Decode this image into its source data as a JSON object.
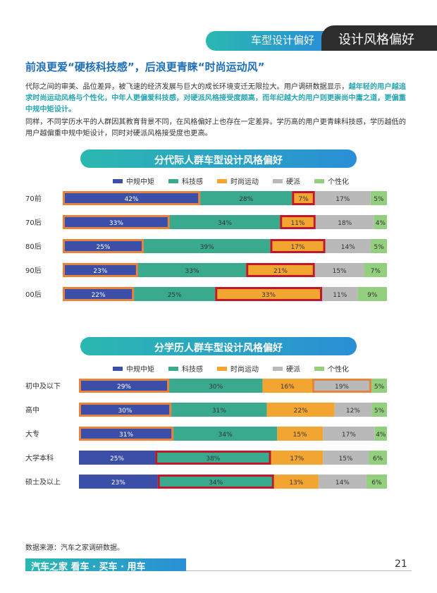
{
  "header": {
    "category": "车型设计偏好",
    "section": "设计风格偏好"
  },
  "headline": "前浪更爱“硬核科技感”，后浪更青睐“时尚运动风”",
  "para1": {
    "a": "代际之间的审美、品位差异，被飞速的经济发展与巨大的成长环境变迁无限拉大。用户调研数据显示，",
    "b": "越年轻的用户越追求时尚运动风格与个性化，中年人更偏爱科技感，对硬派风格接受度颇高，而年纪越大的用户则更崇尚中庸之道，更偏重中规中矩设计。"
  },
  "para2": "同样，不同学历水平的人群因其教育背景不同，在风格偏好上也存在一定差异。学历高的用户更青睐科技感，学历越低的用户越偏重中规中矩设计，同时对硬派风格接受度也更高。",
  "colors": {
    "s1": "#3b4fa8",
    "s2": "#3aaa8e",
    "s3": "#f2a530",
    "s4": "#b9b9b9",
    "s5": "#93cf7e",
    "orange_border": "#e9823c",
    "red_border": "#c0182a"
  },
  "legend": [
    "中规中矩",
    "科技感",
    "时尚运动",
    "硬派",
    "个性化"
  ],
  "chart_data": [
    {
      "type": "bar",
      "orientation": "horizontal-stacked-100",
      "title": "分代际人群车型设计风格偏好",
      "categories": [
        "70前",
        "70后",
        "80后",
        "90后",
        "00后"
      ],
      "series": [
        {
          "name": "中规中矩",
          "values": [
            42,
            33,
            25,
            23,
            22
          ]
        },
        {
          "name": "科技感",
          "values": [
            28,
            34,
            39,
            33,
            25
          ]
        },
        {
          "name": "时尚运动",
          "values": [
            7,
            11,
            17,
            21,
            33
          ]
        },
        {
          "name": "硬派",
          "values": [
            17,
            18,
            14,
            15,
            11
          ]
        },
        {
          "name": "个性化",
          "values": [
            5,
            4,
            5,
            7,
            9
          ]
        }
      ],
      "highlights": {
        "中规中矩": "orange",
        "时尚运动": "red"
      }
    },
    {
      "type": "bar",
      "orientation": "horizontal-stacked-100",
      "title": "分学历人群车型设计风格偏好",
      "categories": [
        "初中及以下",
        "高中",
        "大专",
        "大学本科",
        "硕士及以上"
      ],
      "series": [
        {
          "name": "中规中矩",
          "values": [
            29,
            30,
            31,
            25,
            23
          ]
        },
        {
          "name": "科技感",
          "values": [
            30,
            31,
            34,
            38,
            34
          ]
        },
        {
          "name": "时尚运动",
          "values": [
            16,
            22,
            15,
            17,
            13
          ]
        },
        {
          "name": "硬派",
          "values": [
            19,
            12,
            17,
            15,
            14
          ]
        },
        {
          "name": "个性化",
          "values": [
            5,
            5,
            4,
            6,
            6
          ]
        }
      ],
      "highlight_cells": [
        [
          0,
          0,
          "orange"
        ],
        [
          1,
          0,
          "orange"
        ],
        [
          2,
          0,
          "orange"
        ],
        [
          0,
          3,
          "orange"
        ],
        [
          3,
          1,
          "red"
        ],
        [
          4,
          1,
          "red"
        ]
      ]
    }
  ],
  "source": "数据来源：汽车之家调研数据。",
  "footer": {
    "brand": "汽车之家 看车 · 买车 · 用车",
    "page": "21"
  }
}
